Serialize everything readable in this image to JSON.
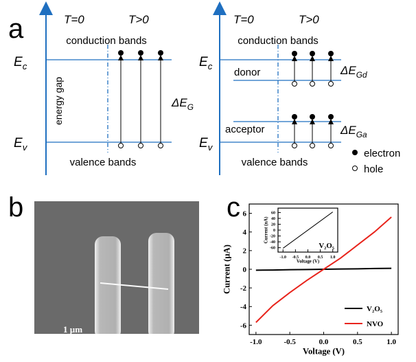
{
  "diagram": {
    "label": "a",
    "left": {
      "t0": "T=0",
      "tpos": "T>0",
      "conduction": "conduction bands",
      "valence": "valence bands",
      "gap": "energy gap",
      "ec": {
        "main": "E",
        "sub": "c"
      },
      "ev": {
        "main": "E",
        "sub": "v"
      },
      "delta": {
        "main": "ΔE",
        "sub": "G"
      }
    },
    "right": {
      "t0": "T=0",
      "tpos": "T>0",
      "conduction": "conduction bands",
      "valence": "valence bands",
      "donor": "donor",
      "acceptor": "acceptor",
      "ec": {
        "main": "E",
        "sub": "c"
      },
      "ev": {
        "main": "E",
        "sub": "v"
      },
      "delta_d": {
        "main": "ΔE",
        "sub": "Gd"
      },
      "delta_a": {
        "main": "ΔE",
        "sub": "Ga"
      }
    },
    "legend": {
      "electron": "electron",
      "hole": "hole"
    }
  },
  "image": {
    "label": "b",
    "scale_bar": "1 µm"
  },
  "chart_label": "c",
  "chart_data": [
    {
      "type": "line",
      "x_label": "Voltage (V)",
      "y_label": "Current (µA)",
      "x": [
        -1.0,
        -0.75,
        -0.5,
        -0.25,
        0.0,
        0.25,
        0.5,
        0.75,
        1.0
      ],
      "series": [
        {
          "name": "V₂O₅",
          "color": "#000000",
          "values": [
            -0.1,
            -0.08,
            -0.05,
            -0.03,
            0,
            0.03,
            0.05,
            0.08,
            0.1
          ]
        },
        {
          "name": "NVO",
          "color": "#e8241c",
          "values": [
            -5.7,
            -3.9,
            -2.5,
            -1.2,
            0,
            1.2,
            2.6,
            4.0,
            5.6
          ]
        }
      ],
      "xlim": [
        -1.1,
        1.1
      ],
      "xticks": [
        {
          "value": -1,
          "label": "-1.0"
        },
        {
          "value": -0.5,
          "label": "-0.5"
        },
        {
          "value": 0,
          "label": "0.0"
        },
        {
          "value": 0.5,
          "label": "0.5"
        },
        {
          "value": 1,
          "label": "1.0"
        }
      ],
      "ylim": [
        -7,
        7
      ],
      "yticks": [
        -6,
        -4,
        -2,
        0,
        2,
        4,
        6
      ],
      "legend": "lower right"
    },
    {
      "type": "line",
      "x_label": "Voltage (V)",
      "y_label": "Current (nA)",
      "annotation": "V₂O₅",
      "x": [
        -1.0,
        1.0
      ],
      "series": [
        {
          "color": "#000000",
          "values": [
            -62,
            62
          ]
        }
      ],
      "xlim": [
        -1.2,
        1.2
      ],
      "xticks": [
        {
          "value": -1,
          "label": "-1.0"
        },
        {
          "value": -0.5,
          "label": "-0.5"
        },
        {
          "value": 0,
          "label": "0.0"
        },
        {
          "value": 0.5,
          "label": "0.5"
        },
        {
          "value": 1,
          "label": "1.0"
        }
      ],
      "ylim": [
        -75,
        75
      ],
      "yticks": [
        -60,
        -40,
        -20,
        0,
        20,
        40,
        60
      ]
    }
  ]
}
